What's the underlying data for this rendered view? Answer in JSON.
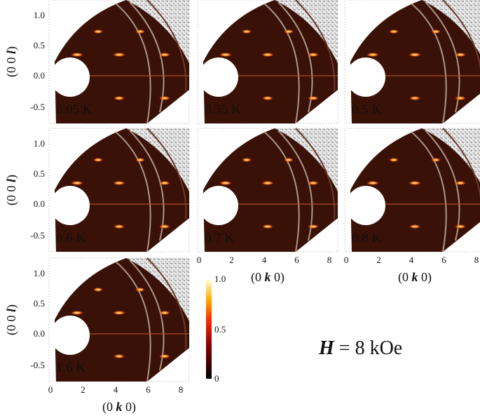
{
  "panels": [
    {
      "label": "0.05 K"
    },
    {
      "label": "0.35 K"
    },
    {
      "label": "0.5 K"
    },
    {
      "label": "0.6 K"
    },
    {
      "label": "0.7 K"
    },
    {
      "label": "0.8 K"
    },
    {
      "label": "1.6 K"
    }
  ],
  "y_ticks": [
    "1.0",
    "0.5",
    "0.0",
    "-0.5"
  ],
  "x_ticks": [
    0,
    2,
    4,
    6,
    8
  ],
  "x_label": {
    "prefix": "(0 ",
    "var": "k",
    "suffix": " 0)"
  },
  "y_label": {
    "prefix": "(0 0 ",
    "var": "l",
    "suffix": ")"
  },
  "colorbar_ticks": [
    "1.0",
    "0.5",
    "0"
  ],
  "field": {
    "symbol": "H",
    "text": " = 8 kOe"
  }
}
